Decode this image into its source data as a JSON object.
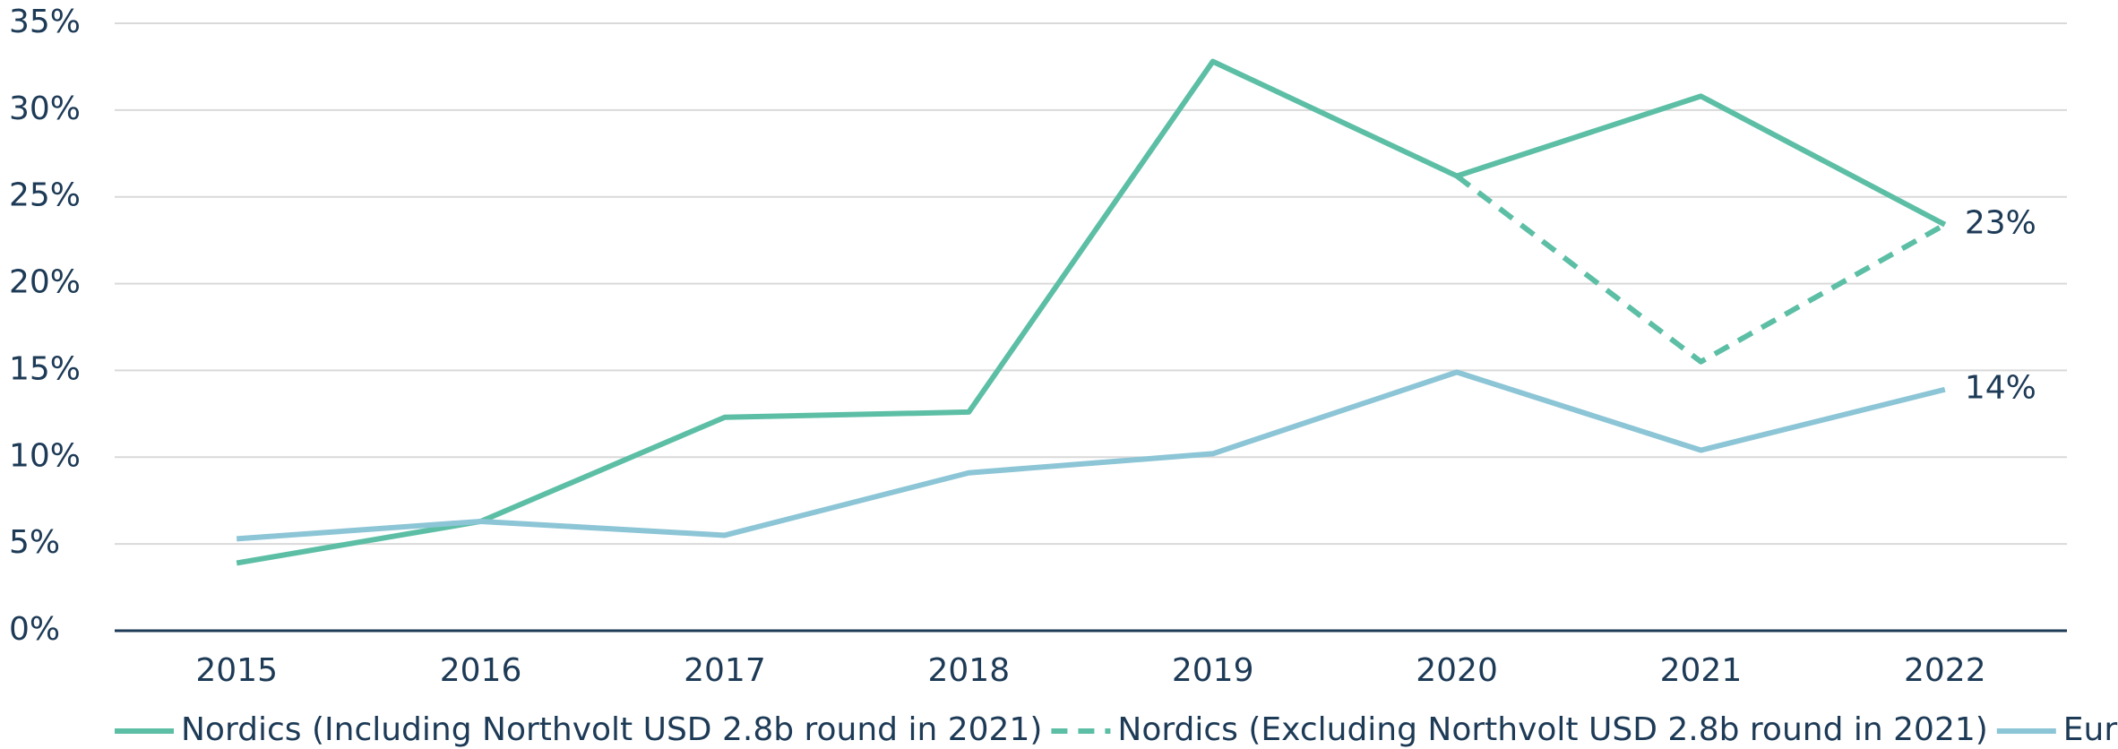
{
  "chart_data": {
    "type": "line",
    "categories": [
      "2015",
      "2016",
      "2017",
      "2018",
      "2019",
      "2020",
      "2021",
      "2022"
    ],
    "series": [
      {
        "name": "Nordics (Including Northvolt USD 2.8b round in 2021)",
        "color": "#5cbfa5",
        "line_style": "solid",
        "values": [
          3.9,
          6.3,
          12.3,
          12.6,
          32.8,
          26.2,
          30.8,
          23.4
        ],
        "value_labels": [
          null,
          null,
          null,
          null,
          null,
          null,
          null,
          "23%"
        ]
      },
      {
        "name": "Nordics (Excluding Northvolt USD 2.8b round in 2021)",
        "color": "#5cbfa5",
        "line_style": "dashed",
        "values": [
          null,
          null,
          null,
          null,
          null,
          26.2,
          15.5,
          23.4
        ]
      },
      {
        "name": "Europe",
        "color": "#8cc5d6",
        "line_style": "solid",
        "values": [
          5.3,
          6.3,
          5.5,
          9.1,
          10.2,
          14.9,
          10.4,
          13.9
        ],
        "value_labels": [
          null,
          null,
          null,
          null,
          null,
          null,
          null,
          "14%"
        ]
      }
    ],
    "ylim": [
      0,
      35
    ],
    "yticks": [
      {
        "value": 0,
        "label": "0%"
      },
      {
        "value": 5,
        "label": "5%"
      },
      {
        "value": 10,
        "label": "10%"
      },
      {
        "value": 15,
        "label": "15%"
      },
      {
        "value": 20,
        "label": "20%"
      },
      {
        "value": 25,
        "label": "25%"
      },
      {
        "value": 30,
        "label": "30%"
      },
      {
        "value": 35,
        "label": "35%"
      }
    ],
    "grid": true,
    "legend": "bottom"
  }
}
